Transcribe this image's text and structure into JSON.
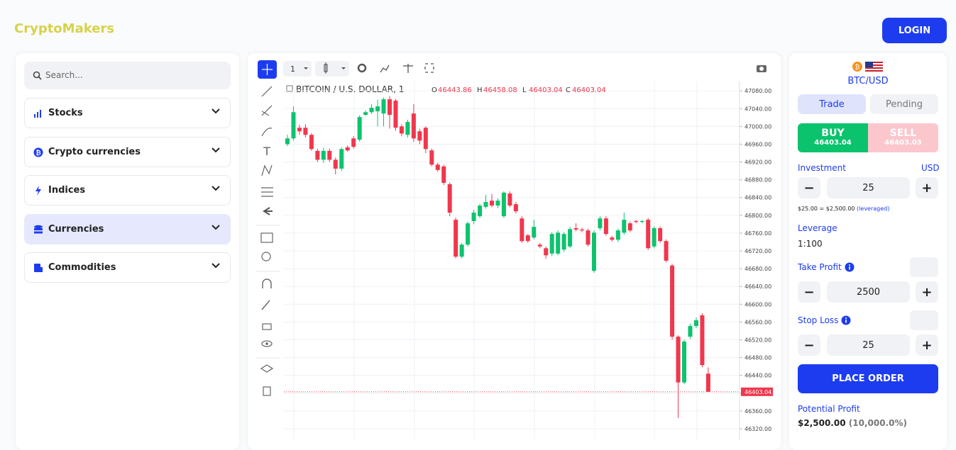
{
  "header": {
    "logo": "CryptoMakers",
    "login": "LOGIN"
  },
  "sidebar": {
    "search": "Search...",
    "menu": [
      "Stocks",
      "Crypto currencies",
      "Indices",
      "Currencies",
      "Commodities"
    ]
  },
  "toolbar": {
    "interval": "1"
  },
  "chart_data": {
    "type": "candlestick",
    "title": "BITCOIN / U.S. DOLLAR, 1",
    "ohlc_labels": [
      "O",
      "H",
      "L",
      "C"
    ],
    "ohlc_values": [
      46443.86,
      46458.08,
      46403.04,
      46403.04
    ],
    "open": [
      46960,
      46973,
      46997,
      46997,
      46981,
      46945,
      46925,
      46945,
      46925,
      46905,
      46953,
      46973,
      46970,
      47026,
      47032,
      47034,
      47029,
      47061,
      47058,
      47000,
      46981,
      47029,
      46989,
      46997,
      46946,
      46914,
      46910,
      46870,
      46790,
      46707,
      46734,
      46787,
      46798,
      46819,
      46833,
      46822,
      46798,
      46849,
      46825,
      46793,
      46755,
      46750,
      46734,
      46726,
      46714,
      46714,
      46723,
      46730,
      46771,
      46768,
      46766,
      46675,
      46771,
      46793,
      46750,
      46745,
      46761,
      46782,
      46787,
      46785,
      46790,
      46730,
      46771,
      46742,
      46687,
      46527,
      46424,
      46527,
      46551,
      46575,
      46443.86
    ],
    "high": [
      46981,
      47045,
      47004,
      47005,
      46985,
      46950,
      46952,
      46950,
      46930,
      46953,
      46957,
      46978,
      47025,
      47036,
      47050,
      47060,
      47065,
      47068,
      47062,
      47005,
      47015,
      47050,
      46995,
      47000,
      46950,
      46918,
      46914,
      46874,
      46795,
      46738,
      46786,
      46812,
      46826,
      46846,
      46848,
      46838,
      46854,
      46854,
      46830,
      46798,
      46758,
      46790,
      46738,
      46730,
      46762,
      46766,
      46762,
      46774,
      46782,
      46772,
      46770,
      46766,
      46798,
      46798,
      46754,
      46770,
      46806,
      46786,
      46790,
      46790,
      46794,
      46775,
      46775,
      46746,
      46691,
      46530,
      46520,
      46556,
      46570,
      46580,
      46458.08
    ],
    "low": [
      46956,
      46968,
      46981,
      46975,
      46945,
      46920,
      46918,
      46920,
      46892,
      46900,
      46943,
      46950,
      46966,
      47024,
      47028,
      47000,
      47000,
      46995,
      46990,
      46978,
      46975,
      46965,
      46960,
      46940,
      46910,
      46898,
      46868,
      46798,
      46703,
      46703,
      46730,
      46780,
      46794,
      46815,
      46818,
      46816,
      46794,
      46818,
      46804,
      46738,
      46738,
      46746,
      46726,
      46702,
      46708,
      46710,
      46718,
      46726,
      46764,
      46762,
      46730,
      46671,
      46766,
      46754,
      46741,
      46740,
      46756,
      46762,
      46782,
      46782,
      46722,
      46726,
      46738,
      46694,
      46520,
      46344,
      46420,
      46522,
      46546,
      46458,
      46403.04
    ],
    "close": [
      46973,
      47032,
      46989,
      46981,
      46949,
      46925,
      46945,
      46925,
      46905,
      46949,
      46946,
      46954,
      47021,
      47032,
      47042,
      47045,
      47061,
      47026,
      46997,
      46984,
      47010,
      46973,
      46968,
      46949,
      46914,
      46902,
      46873,
      46806,
      46707,
      46734,
      46782,
      46806,
      46822,
      46830,
      46822,
      46833,
      46851,
      46822,
      46809,
      46742,
      46742,
      46774,
      46730,
      46710,
      46758,
      46761,
      46758,
      46769,
      46768,
      46766,
      46734,
      46761,
      46793,
      46758,
      46745,
      46766,
      46790,
      46766,
      46785,
      46787,
      46726,
      46771,
      46742,
      46698,
      46527,
      46424,
      46516,
      46551,
      46564,
      46463,
      46403.04
    ],
    "up_color": "#0cc36d",
    "down_color": "#f0374d",
    "ylim": [
      46296,
      47101
    ],
    "yticks": [
      {
        "value": 46320,
        "label": "46320.00"
      },
      {
        "value": 46360,
        "label": "46360.00"
      },
      {
        "value": 46400,
        "label": "46400.00"
      },
      {
        "value": 46440,
        "label": "46440.00"
      },
      {
        "value": 46480,
        "label": "46480.00"
      },
      {
        "value": 46520,
        "label": "46520.00"
      },
      {
        "value": 46560,
        "label": "46560.00"
      },
      {
        "value": 46600,
        "label": "46600.00"
      },
      {
        "value": 46640,
        "label": "46640.00"
      },
      {
        "value": 46680,
        "label": "46680.00"
      },
      {
        "value": 46720,
        "label": "46720.00"
      },
      {
        "value": 46760,
        "label": "46760.00"
      },
      {
        "value": 46800,
        "label": "46800.00"
      },
      {
        "value": 46840,
        "label": "46840.00"
      },
      {
        "value": 46880,
        "label": "46880.00"
      },
      {
        "value": 46920,
        "label": "46920.00"
      },
      {
        "value": 46960,
        "label": "46960.00"
      },
      {
        "value": 47000,
        "label": "47000.00"
      },
      {
        "value": 47040,
        "label": "47040.00"
      },
      {
        "value": 47080,
        "label": "47080.00"
      }
    ],
    "last_price": 46403.04,
    "grid": true
  },
  "order": {
    "pair": "BTC/USD",
    "tabs": [
      "Trade",
      "Pending"
    ],
    "buy": {
      "label": "BUY",
      "price": 46403.04
    },
    "sell": {
      "label": "SELL",
      "price": 46403.03
    },
    "investment": {
      "label": "Investment",
      "currency": "USD",
      "value": 25,
      "range": "$25.00 = $2,500.00",
      "note": "(leveraged)"
    },
    "leverage": {
      "label": "Leverage",
      "value": "1:100"
    },
    "take_profit": {
      "label": "Take Profit",
      "value": 2500
    },
    "stop_loss": {
      "label": "Stop Loss",
      "value": 25
    },
    "place_order": "PLACE ORDER",
    "potential_profit": {
      "label": "Potential Profit",
      "value": "$2,500.00",
      "percent": "(10,000.0%)"
    }
  }
}
